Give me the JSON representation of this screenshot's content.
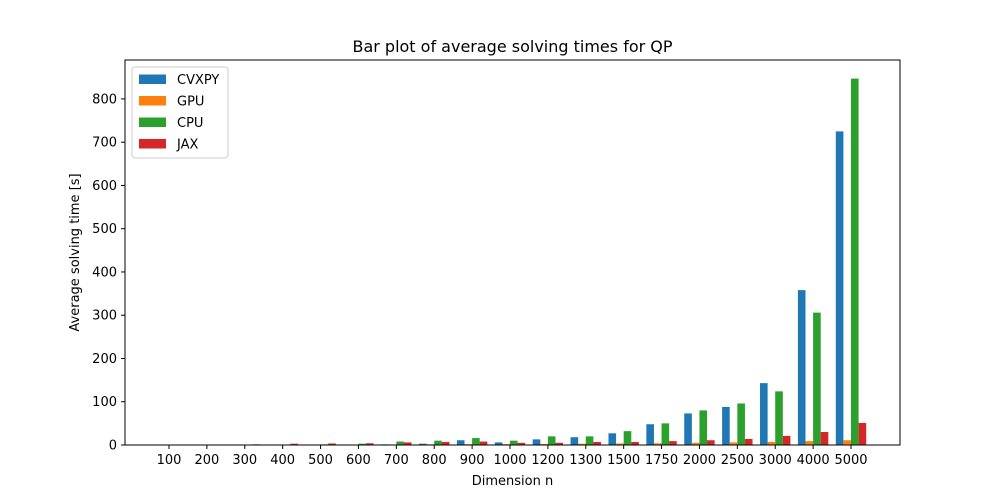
{
  "chart_data": {
    "type": "bar",
    "title": "Bar plot of average solving times for QP",
    "xlabel": "Dimension n",
    "ylabel": "Average solving time [s]",
    "ylim": [
      0,
      890
    ],
    "yticks": [
      0,
      100,
      200,
      300,
      400,
      500,
      600,
      700,
      800
    ],
    "legend_position": "top-left",
    "grid": false,
    "categories": [
      "100",
      "200",
      "300",
      "400",
      "500",
      "600",
      "700",
      "800",
      "900",
      "1000",
      "1200",
      "1300",
      "1500",
      "1750",
      "2000",
      "2500",
      "3000",
      "4000",
      "5000"
    ],
    "series": [
      {
        "name": "CVXPY",
        "color": "#1f77b4",
        "values": [
          0.1,
          0.2,
          0.3,
          0.5,
          0.8,
          1.0,
          1.5,
          3,
          11,
          6,
          13,
          18,
          27,
          48,
          73,
          88,
          143,
          358,
          725
        ]
      },
      {
        "name": "GPU",
        "color": "#ff7f0e",
        "values": [
          0.3,
          0.4,
          0.5,
          0.6,
          0.8,
          1.0,
          1.2,
          1.5,
          1.8,
          2,
          2.5,
          3,
          3.5,
          4,
          5,
          6,
          7,
          9,
          11
        ]
      },
      {
        "name": "CPU",
        "color": "#2ca02c",
        "values": [
          0.2,
          0.3,
          0.5,
          1.0,
          1.5,
          3,
          8,
          10,
          16,
          10,
          20,
          20,
          32,
          50,
          80,
          96,
          124,
          306,
          847
        ]
      },
      {
        "name": "JAX",
        "color": "#d62728",
        "values": [
          0.5,
          1.0,
          1.5,
          3,
          3.5,
          4,
          6,
          7,
          8,
          5,
          5,
          7,
          7,
          9,
          11,
          14,
          21,
          30,
          51
        ]
      }
    ]
  }
}
